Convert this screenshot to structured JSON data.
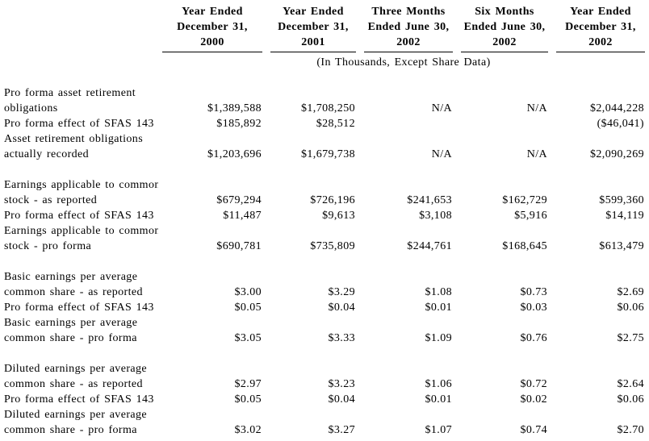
{
  "page": {
    "background": "#ffffff",
    "text_color": "#000000"
  },
  "table": {
    "subtitle": "(In Thousands, Except Share Data)",
    "columns": [
      {
        "lines": [
          "Year Ended",
          "December 31,",
          "2000"
        ]
      },
      {
        "lines": [
          "Year Ended",
          "December 31,",
          "2001"
        ]
      },
      {
        "lines": [
          "Three Months",
          "Ended June 30,",
          "2002"
        ]
      },
      {
        "lines": [
          "Six Months",
          "Ended June 30,",
          "2002"
        ]
      },
      {
        "lines": [
          "Year Ended",
          "December 31,",
          "2002"
        ]
      }
    ],
    "sections": [
      {
        "rows": [
          {
            "label_lines": [
              "Pro forma asset retirement",
              "obligations"
            ],
            "values": [
              "$1,389,588",
              "$1,708,250",
              "N/A",
              "N/A",
              "$2,044,228"
            ]
          },
          {
            "label_lines": [
              "Pro forma effect of SFAS 143"
            ],
            "values": [
              "$185,892",
              "$28,512",
              "",
              "",
              "($46,041)"
            ]
          },
          {
            "label_lines": [
              "Asset retirement obligations",
              "actually recorded"
            ],
            "values": [
              "$1,203,696",
              "$1,679,738",
              "N/A",
              "N/A",
              "$2,090,269"
            ]
          }
        ]
      },
      {
        "rows": [
          {
            "label_lines": [
              "Earnings applicable to common",
              "stock - as reported"
            ],
            "values": [
              "$679,294",
              "$726,196",
              "$241,653",
              "$162,729",
              "$599,360"
            ]
          },
          {
            "label_lines": [
              "Pro forma effect of SFAS 143"
            ],
            "values": [
              "$11,487",
              "$9,613",
              "$3,108",
              "$5,916",
              "$14,119"
            ]
          },
          {
            "label_lines": [
              "Earnings applicable to common",
              "stock - pro forma"
            ],
            "values": [
              "$690,781",
              "$735,809",
              "$244,761",
              "$168,645",
              "$613,479"
            ]
          }
        ]
      },
      {
        "rows": [
          {
            "label_lines": [
              "Basic earnings per average",
              "common share - as reported"
            ],
            "values": [
              "$3.00",
              "$3.29",
              "$1.08",
              "$0.73",
              "$2.69"
            ]
          },
          {
            "label_lines": [
              "Pro forma effect of SFAS 143"
            ],
            "values": [
              "$0.05",
              "$0.04",
              "$0.01",
              "$0.03",
              "$0.06"
            ]
          },
          {
            "label_lines": [
              "Basic earnings per average",
              "common share - pro forma"
            ],
            "values": [
              "$3.05",
              "$3.33",
              "$1.09",
              "$0.76",
              "$2.75"
            ]
          }
        ]
      },
      {
        "rows": [
          {
            "label_lines": [
              "Diluted earnings per average",
              "common share - as reported"
            ],
            "values": [
              "$2.97",
              "$3.23",
              "$1.06",
              "$0.72",
              "$2.64"
            ]
          },
          {
            "label_lines": [
              "Pro forma effect of SFAS 143"
            ],
            "values": [
              "$0.05",
              "$0.04",
              "$0.01",
              "$0.02",
              "$0.06"
            ]
          },
          {
            "label_lines": [
              "Diluted earnings per average",
              "common share - pro forma"
            ],
            "values": [
              "$3.02",
              "$3.27",
              "$1.07",
              "$0.74",
              "$2.70"
            ]
          }
        ]
      }
    ]
  }
}
